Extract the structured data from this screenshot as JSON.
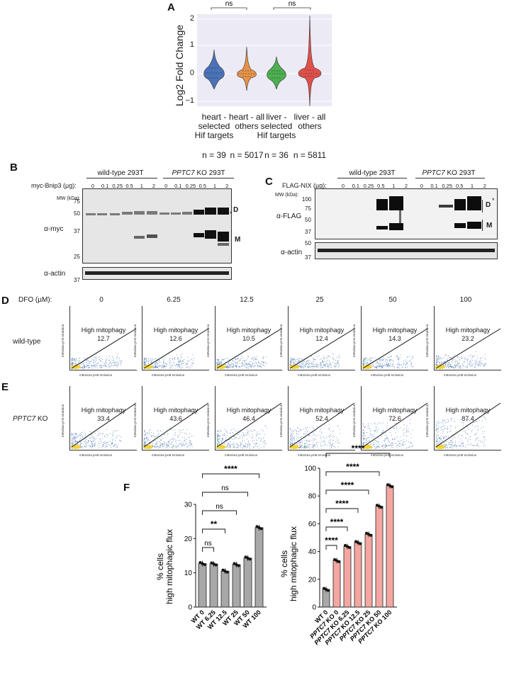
{
  "panels": {
    "A": "A",
    "B": "B",
    "C": "C",
    "D": "D",
    "E": "E",
    "F": "F"
  },
  "panelA": {
    "ylabel": "Log2 Fold Change",
    "yticks": [
      "2",
      "1",
      "0",
      "−1"
    ],
    "sig": [
      "ns",
      "ns"
    ],
    "groups": [
      {
        "label_lines": [
          "heart -",
          "selected",
          "Hif targets"
        ],
        "n": "n = 39",
        "color": "#4a72b8"
      },
      {
        "label_lines": [
          "heart - all",
          "others"
        ],
        "n": "n = 5017",
        "color": "#e8934a"
      },
      {
        "label_lines": [
          "liver -",
          "selected",
          "Hif targets"
        ],
        "n": "n = 36",
        "color": "#4caf50"
      },
      {
        "label_lines": [
          "liver - all",
          "others"
        ],
        "n": "n = 5811",
        "color": "#e0504a"
      }
    ]
  },
  "panelB": {
    "row_label": "myc-Bnip3 (µg):",
    "wt_header": "wild-type 293T",
    "ko_header_italic": "PPTC7",
    "ko_header_rest": " KO 293T",
    "lanes": [
      "0",
      "0.1",
      "0.25",
      "0.5",
      "1",
      "2",
      "0",
      "0.1",
      "0.25",
      "0.5",
      "1",
      "2"
    ],
    "mw_label": "MW (kDa):",
    "mw": [
      "75",
      "50",
      "37",
      "25"
    ],
    "antibody": "α-myc",
    "loading": "α-actin",
    "loading_mw": "37",
    "D": "D",
    "M": "M",
    "star": "*"
  },
  "panelC": {
    "row_label": "FLAG-NIX (µg):",
    "wt_header": "wild-type 293T",
    "ko_header_italic": "PPTC7",
    "ko_header_rest": " KO 293T",
    "lanes": [
      "0",
      "0.1",
      "0.25",
      "0.5",
      "1",
      "2",
      "0",
      "0.1",
      "0.25",
      "0.5",
      "1",
      "2"
    ],
    "mw_label": "MW (kDa):",
    "mw": [
      "100",
      "75",
      "50",
      "37"
    ],
    "actin_mw": [
      "50",
      "37"
    ],
    "antibody": "α-FLAG",
    "loading": "α-actin",
    "D": "D",
    "M": "M",
    "star": "*"
  },
  "flow": {
    "dfo_label": "DFO (µM):",
    "doses": [
      "0",
      "6.25",
      "12.5",
      "25",
      "50",
      "100"
    ],
    "gate_label": "High mitophagy",
    "wt_label": "wild-type",
    "ko_label_italic": "PPTC7",
    "ko_label_rest": " KO",
    "wt_values": [
      "12.7",
      "12.6",
      "10.5",
      "12.4",
      "14.3",
      "23.2"
    ],
    "ko_values": [
      "33.4",
      "43.6",
      "46.4",
      "52.4",
      "72.6",
      "87.4"
    ],
    "xaxis": "mtKeima pH8 emission",
    "yaxis": "mtKeima pH4 emission"
  },
  "panelF": {
    "ylabel_lines": [
      "% cells",
      "high mitophagic flux"
    ],
    "left": {
      "ymax": 30,
      "yticks": [
        "0",
        "10",
        "20",
        "30"
      ],
      "categories": [
        "WT 0",
        "WT 6.25",
        "WT 12.5",
        "WT 25",
        "WT 50",
        "WT 100"
      ],
      "sig": [
        "ns",
        "**",
        "ns",
        "ns",
        "****"
      ]
    },
    "right": {
      "ymax": 100,
      "yticks": [
        "0",
        "20",
        "40",
        "60",
        "80",
        "100"
      ],
      "categories": [
        "WT 0",
        "PPTC7 KO 0",
        "PPTC7 KO 6.25",
        "PPTC7 KO 12.5",
        "PPTC7 KO 25",
        "PPTC7 KO 50",
        "PPTC7 KO 100"
      ],
      "sig": [
        "****",
        "****",
        "****",
        "****",
        "****",
        "****"
      ]
    }
  },
  "chart_data": [
    {
      "type": "bar",
      "categories": [
        "WT 0",
        "WT 6.25",
        "WT 12.5",
        "WT 25",
        "WT 50",
        "WT 100"
      ],
      "values": [
        12.7,
        12.6,
        10.5,
        12.4,
        14.3,
        23.2
      ],
      "ylabel": "% cells high mitophagic flux",
      "ylim": [
        0,
        30
      ],
      "color": "#a8a8a8"
    },
    {
      "type": "bar",
      "categories": [
        "WT 0",
        "PPTC7 KO 0",
        "PPTC7 KO 6.25",
        "PPTC7 KO 12.5",
        "PPTC7 KO 25",
        "PPTC7 KO 50",
        "PPTC7 KO 100"
      ],
      "values": [
        12.7,
        33.4,
        43.6,
        46.4,
        52.4,
        72.6,
        87.4
      ],
      "ylabel": "% cells high mitophagic flux",
      "ylim": [
        0,
        100
      ],
      "colors": [
        "#a8a8a8",
        "#f4a6a0",
        "#f4a6a0",
        "#f4a6a0",
        "#f4a6a0",
        "#f4a6a0",
        "#f4a6a0"
      ]
    }
  ]
}
